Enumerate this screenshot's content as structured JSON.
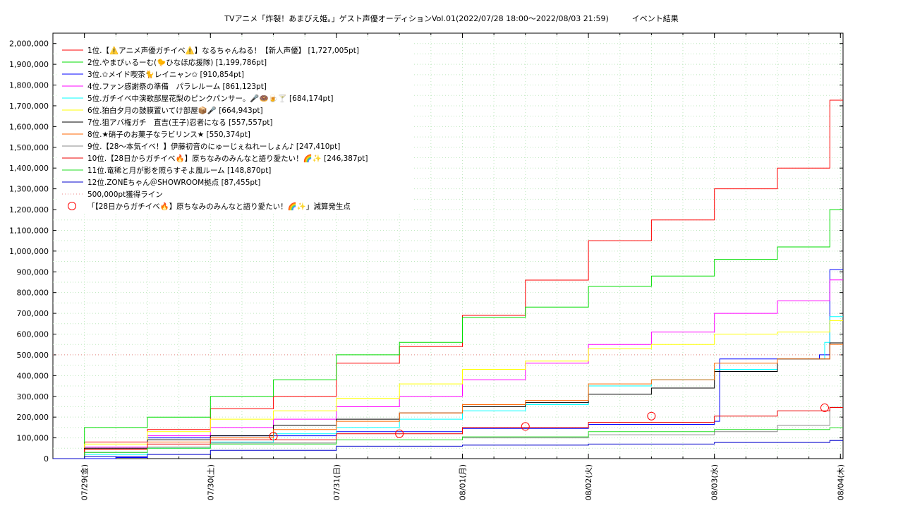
{
  "chart_data": {
    "type": "line",
    "title": "TVアニメ「炸裂！あまびえ姫。」ゲスト声優オーディションVol.01(2022/07/28 18:00～2022/08/03 21:59)　　　イベント結果",
    "xlabel": "",
    "ylabel": "",
    "ylim": [
      0,
      2050000
    ],
    "xlim": [
      "2022-07-28 18:00",
      "2022-08-04 00:30"
    ],
    "grid": true,
    "legend_position": "top-left",
    "y_ticks": [
      "0",
      "100,000",
      "200,000",
      "300,000",
      "400,000",
      "500,000",
      "600,000",
      "700,000",
      "800,000",
      "900,000",
      "1,000,000",
      "1,100,000",
      "1,200,000",
      "1,300,000",
      "1,400,000",
      "1,500,000",
      "1,600,000",
      "1,700,000",
      "1,800,000",
      "1,900,000",
      "2,000,000"
    ],
    "x_ticks": [
      {
        "date": "2022-07-29",
        "label": "07/29(金)"
      },
      {
        "date": "2022-07-30",
        "label": "07/30(土)"
      },
      {
        "date": "2022-07-31",
        "label": "07/31(日)"
      },
      {
        "date": "2022-08-01",
        "label": "08/01(月)"
      },
      {
        "date": "2022-08-02",
        "label": "08/02(火)"
      },
      {
        "date": "2022-08-03",
        "label": "08/03(水)"
      },
      {
        "date": "2022-08-04",
        "label": "08/04(木)"
      }
    ],
    "series": [
      {
        "name": "1位.【⚠️アニメ声優ガチイベ⚠️】なるちゃんねる！【新人声優】 [1,727,005pt]",
        "color": "#ff0000",
        "x": [
          "2022-07-28 18:00",
          "2022-07-29 00:00",
          "2022-07-29 12:00",
          "2022-07-30 00:00",
          "2022-07-30 12:00",
          "2022-07-31 00:00",
          "2022-07-31 12:00",
          "2022-08-01 00:00",
          "2022-08-01 12:00",
          "2022-08-02 00:00",
          "2022-08-02 12:00",
          "2022-08-03 00:00",
          "2022-08-03 12:00",
          "2022-08-03 21:59",
          "2022-08-04 00:30"
        ],
        "y": [
          0,
          80000,
          140000,
          240000,
          300000,
          460000,
          540000,
          690000,
          860000,
          1050000,
          1150000,
          1300000,
          1400000,
          1727005,
          1727005
        ]
      },
      {
        "name": "2位.やまぴぃるーむ(🐤ひなほ応援隊) [1,199,786pt]",
        "color": "#00dd00",
        "x": [
          "2022-07-28 18:00",
          "2022-07-29 00:00",
          "2022-07-29 12:00",
          "2022-07-30 00:00",
          "2022-07-30 12:00",
          "2022-07-31 00:00",
          "2022-07-31 12:00",
          "2022-08-01 00:00",
          "2022-08-01 12:00",
          "2022-08-02 00:00",
          "2022-08-02 12:00",
          "2022-08-03 00:00",
          "2022-08-03 12:00",
          "2022-08-03 21:59",
          "2022-08-04 00:30"
        ],
        "y": [
          0,
          150000,
          200000,
          300000,
          380000,
          500000,
          560000,
          680000,
          730000,
          830000,
          880000,
          960000,
          1020000,
          1199786,
          1199786
        ]
      },
      {
        "name": "3位.✩メイド喫茶🐈レイニャン✩ [910,854pt]",
        "color": "#0000ff",
        "x": [
          "2022-07-28 18:00",
          "2022-07-29 06:00",
          "2022-07-29 12:00",
          "2022-07-30 00:00",
          "2022-07-31 00:00",
          "2022-08-01 00:00",
          "2022-08-02 00:00",
          "2022-08-03 00:00",
          "2022-08-03 01:00",
          "2022-08-03 20:00",
          "2022-08-03 21:59",
          "2022-08-04 00:30"
        ],
        "y": [
          0,
          5000,
          100000,
          110000,
          130000,
          145000,
          165000,
          180000,
          480000,
          500000,
          910854,
          910854
        ]
      },
      {
        "name": "4位.ファン感謝祭の準備　パラレルーム [861,123pt]",
        "color": "#ff00ff",
        "x": [
          "2022-07-28 18:00",
          "2022-07-29 00:00",
          "2022-07-29 12:00",
          "2022-07-30 00:00",
          "2022-07-30 12:00",
          "2022-07-31 00:00",
          "2022-07-31 12:00",
          "2022-08-01 00:00",
          "2022-08-01 12:00",
          "2022-08-02 00:00",
          "2022-08-02 12:00",
          "2022-08-03 00:00",
          "2022-08-03 12:00",
          "2022-08-03 21:59",
          "2022-08-04 00:30"
        ],
        "y": [
          0,
          55000,
          110000,
          150000,
          190000,
          250000,
          300000,
          380000,
          460000,
          550000,
          610000,
          700000,
          760000,
          861123,
          861123
        ]
      },
      {
        "name": "5位.ガチイベ中演歌部屋花梨のピンクパンサー。🎤🍩🍺🍸 [684,174pt]",
        "color": "#00ffff",
        "x": [
          "2022-07-28 18:00",
          "2022-07-29 00:00",
          "2022-07-29 12:00",
          "2022-07-30 00:00",
          "2022-07-30 12:00",
          "2022-07-31 00:00",
          "2022-07-31 12:00",
          "2022-08-01 00:00",
          "2022-08-01 12:00",
          "2022-08-02 00:00",
          "2022-08-02 12:00",
          "2022-08-03 00:00",
          "2022-08-03 12:00",
          "2022-08-03 21:00",
          "2022-08-03 21:59",
          "2022-08-04 00:30"
        ],
        "y": [
          0,
          20000,
          50000,
          80000,
          120000,
          150000,
          190000,
          230000,
          260000,
          350000,
          380000,
          430000,
          480000,
          560000,
          684174,
          684174
        ]
      },
      {
        "name": "6位.狛白夕月の鼓膜置いてけ部屋📦🎤 [664,943pt]",
        "color": "#ffff00",
        "x": [
          "2022-07-28 18:00",
          "2022-07-29 00:00",
          "2022-07-29 12:00",
          "2022-07-30 00:00",
          "2022-07-30 12:00",
          "2022-07-31 00:00",
          "2022-07-31 12:00",
          "2022-08-01 00:00",
          "2022-08-01 12:00",
          "2022-08-02 00:00",
          "2022-08-02 12:00",
          "2022-08-03 00:00",
          "2022-08-03 12:00",
          "2022-08-03 21:59",
          "2022-08-04 00:30"
        ],
        "y": [
          0,
          70000,
          130000,
          190000,
          230000,
          290000,
          360000,
          430000,
          470000,
          530000,
          550000,
          600000,
          610000,
          664943,
          664943
        ]
      },
      {
        "name": "7位.狙アバ権ガチ　直吉(王子)忍者になる [557,557pt]",
        "color": "#000000",
        "x": [
          "2022-07-28 18:00",
          "2022-07-29 00:00",
          "2022-07-29 12:00",
          "2022-07-30 00:00",
          "2022-07-30 12:00",
          "2022-07-31 00:00",
          "2022-07-31 12:00",
          "2022-08-01 00:00",
          "2022-08-01 12:00",
          "2022-08-02 00:00",
          "2022-08-02 12:00",
          "2022-08-03 00:00",
          "2022-08-03 12:00",
          "2022-08-03 21:59",
          "2022-08-04 00:30"
        ],
        "y": [
          0,
          50000,
          90000,
          110000,
          160000,
          190000,
          220000,
          250000,
          270000,
          310000,
          340000,
          420000,
          480000,
          557557,
          557557
        ]
      },
      {
        "name": "8位.★硝子のお菓子なラビリンス★ [550,374pt]",
        "color": "#ff6600",
        "x": [
          "2022-07-28 18:00",
          "2022-07-29 00:00",
          "2022-07-29 12:00",
          "2022-07-30 00:00",
          "2022-07-30 12:00",
          "2022-07-31 00:00",
          "2022-07-31 12:00",
          "2022-08-01 00:00",
          "2022-08-01 12:00",
          "2022-08-02 00:00",
          "2022-08-02 12:00",
          "2022-08-03 00:00",
          "2022-08-03 12:00",
          "2022-08-03 21:59",
          "2022-08-04 00:30"
        ],
        "y": [
          0,
          45000,
          80000,
          100000,
          140000,
          180000,
          220000,
          260000,
          280000,
          360000,
          380000,
          460000,
          480000,
          550374,
          550374
        ]
      },
      {
        "name": "9位.【28～本気イベ！】伊藤初音のにゅーじぇねれーしょん♪ [247,410pt]",
        "color": "#888888",
        "x": [
          "2022-07-28 18:00",
          "2022-07-29 00:00",
          "2022-07-29 12:00",
          "2022-07-30 00:00",
          "2022-07-31 00:00",
          "2022-08-01 00:00",
          "2022-08-02 00:00",
          "2022-08-03 00:00",
          "2022-08-03 12:00",
          "2022-08-03 21:59",
          "2022-08-04 00:30"
        ],
        "y": [
          0,
          30000,
          55000,
          75000,
          90000,
          100000,
          115000,
          130000,
          160000,
          247410,
          247410
        ]
      },
      {
        "name": "10位.【28日からガチイベ🔥】原ちなみのみんなと語り愛たい！🌈✨ [246,387pt]",
        "color": "#ee0000",
        "x": [
          "2022-07-28 18:00",
          "2022-07-29 00:00",
          "2022-07-29 12:00",
          "2022-07-30 00:00",
          "2022-07-31 00:00",
          "2022-08-01 00:00",
          "2022-08-02 00:00",
          "2022-08-03 00:00",
          "2022-08-03 12:00",
          "2022-08-03 21:59",
          "2022-08-04 00:30"
        ],
        "y": [
          0,
          45000,
          70000,
          90000,
          120000,
          150000,
          175000,
          205000,
          230000,
          246387,
          246387
        ]
      },
      {
        "name": "11位.竜稀と月が影を照らすそよ風ルーム [148,870pt]",
        "color": "#22dd22",
        "x": [
          "2022-07-28 18:00",
          "2022-07-29 00:00",
          "2022-07-29 12:00",
          "2022-07-30 00:00",
          "2022-07-31 00:00",
          "2022-08-01 00:00",
          "2022-08-02 00:00",
          "2022-08-03 00:00",
          "2022-08-03 21:59",
          "2022-08-04 00:30"
        ],
        "y": [
          0,
          30000,
          50000,
          70000,
          90000,
          105000,
          130000,
          140000,
          148870,
          148870
        ]
      },
      {
        "name": "12位.ZONËちゃん＠SHOWROOM拠点 [87,455pt]",
        "color": "#0000cc",
        "x": [
          "2022-07-28 18:00",
          "2022-07-29 00:00",
          "2022-07-29 12:00",
          "2022-07-30 00:00",
          "2022-07-31 00:00",
          "2022-08-01 00:00",
          "2022-08-02 00:00",
          "2022-08-03 00:00",
          "2022-08-03 21:59",
          "2022-08-04 00:30"
        ],
        "y": [
          0,
          10000,
          20000,
          40000,
          60000,
          65000,
          70000,
          78000,
          87455,
          87455
        ]
      }
    ],
    "reference_line": {
      "name": "500,000pt獲得ライン",
      "y": 500000,
      "color": "#ee8888"
    },
    "markers": {
      "name": "「【28日からガチイベ🔥】原ちなみのみんなと語り愛たい！🌈✨」減算発生点",
      "color": "#ff0000",
      "points": [
        {
          "x": "2022-07-30 12:00",
          "y": 108000
        },
        {
          "x": "2022-07-31 12:00",
          "y": 120000
        },
        {
          "x": "2022-08-01 12:00",
          "y": 155000
        },
        {
          "x": "2022-08-02 12:00",
          "y": 205000
        },
        {
          "x": "2022-08-03 21:00",
          "y": 245000
        }
      ]
    }
  }
}
